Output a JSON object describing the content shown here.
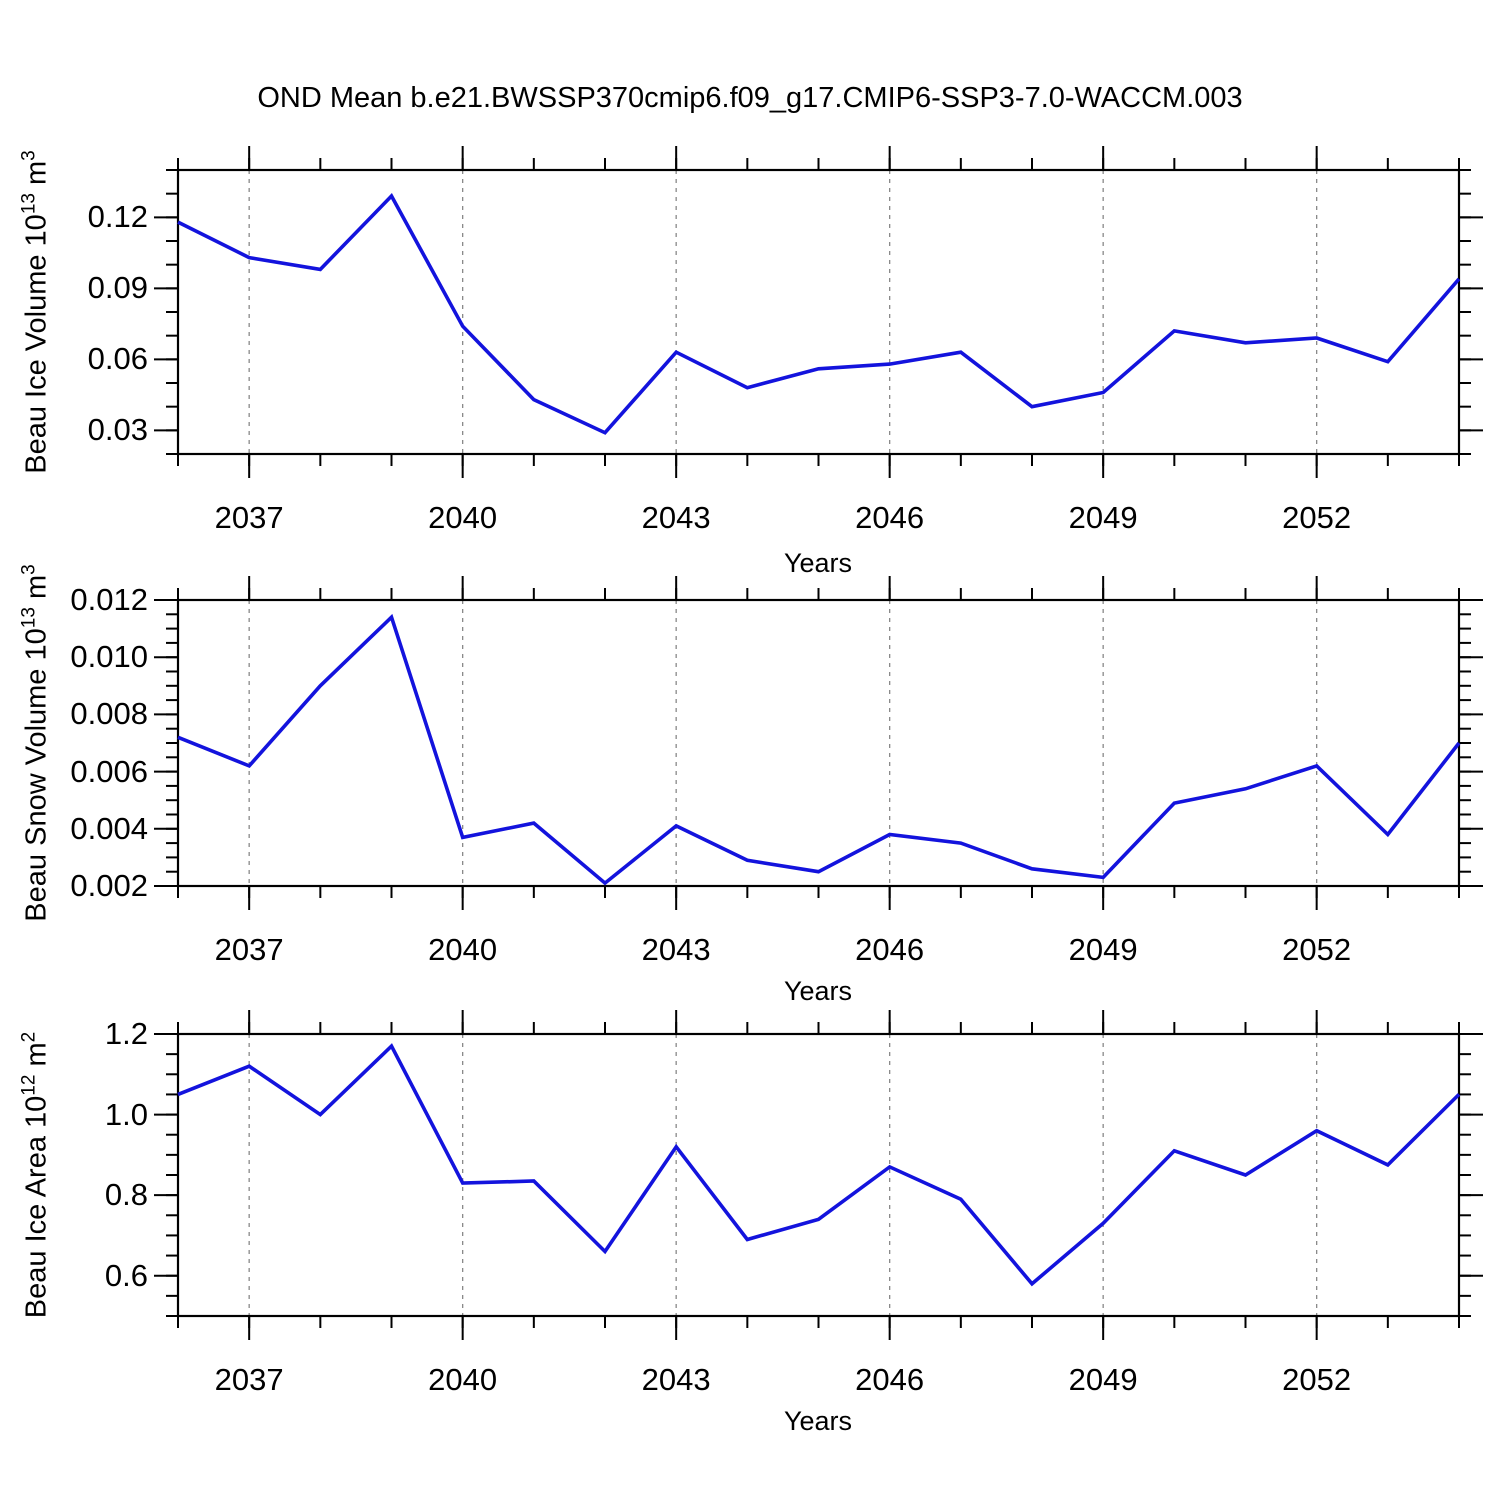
{
  "title": "OND Mean b.e21.BWSSP370cmip6.f09_g17.CMIP6-SSP3-7.0-WACCM.003",
  "line_color": "#1313dd",
  "gridline_color": "#888888",
  "axis_color": "#000000",
  "chart_data": [
    {
      "type": "line",
      "ylabel": {
        "pre": "Beau Ice Volume 10",
        "sup1": "13",
        "mid": " m",
        "sup2": "3"
      },
      "xlabel": "Years",
      "x": [
        2036,
        2037,
        2038,
        2039,
        2040,
        2041,
        2042,
        2043,
        2044,
        2045,
        2046,
        2047,
        2048,
        2049,
        2050,
        2051,
        2052,
        2053,
        2054
      ],
      "values": [
        0.118,
        0.103,
        0.098,
        0.129,
        0.074,
        0.043,
        0.029,
        0.063,
        0.048,
        0.056,
        0.058,
        0.063,
        0.04,
        0.046,
        0.072,
        0.067,
        0.069,
        0.059,
        0.094
      ],
      "xlim": [
        2036,
        2054
      ],
      "ylim": [
        0.02,
        0.14
      ],
      "yticks": [
        {
          "value": 0.03,
          "label": "0.03"
        },
        {
          "value": 0.06,
          "label": "0.06"
        },
        {
          "value": 0.09,
          "label": "0.09"
        },
        {
          "value": 0.12,
          "label": "0.12"
        }
      ],
      "ytick_minor_step": 0.01,
      "xticks_major": [
        {
          "value": 2037,
          "label": "2037"
        },
        {
          "value": 2040,
          "label": "2040"
        },
        {
          "value": 2043,
          "label": "2043"
        },
        {
          "value": 2046,
          "label": "2046"
        },
        {
          "value": 2049,
          "label": "2049"
        },
        {
          "value": 2052,
          "label": "2052"
        }
      ],
      "xtick_minor_step": 1,
      "grid": "dashed-vertical-at-major-xticks"
    },
    {
      "type": "line",
      "ylabel": {
        "pre": "Beau Snow Volume 10",
        "sup1": "13",
        "mid": " m",
        "sup2": "3"
      },
      "xlabel": "Years",
      "x": [
        2036,
        2037,
        2038,
        2039,
        2040,
        2041,
        2042,
        2043,
        2044,
        2045,
        2046,
        2047,
        2048,
        2049,
        2050,
        2051,
        2052,
        2053,
        2054
      ],
      "values": [
        0.0072,
        0.0062,
        0.009,
        0.0114,
        0.0037,
        0.0042,
        0.0021,
        0.0041,
        0.0029,
        0.0025,
        0.0038,
        0.0035,
        0.0026,
        0.0023,
        0.0049,
        0.0054,
        0.0062,
        0.0038,
        0.007
      ],
      "xlim": [
        2036,
        2054
      ],
      "ylim": [
        0.002,
        0.012
      ],
      "yticks": [
        {
          "value": 0.002,
          "label": "0.002"
        },
        {
          "value": 0.004,
          "label": "0.004"
        },
        {
          "value": 0.006,
          "label": "0.006"
        },
        {
          "value": 0.008,
          "label": "0.008"
        },
        {
          "value": 0.01,
          "label": "0.010"
        },
        {
          "value": 0.012,
          "label": "0.012"
        }
      ],
      "ytick_minor_step": 0.0005,
      "xticks_major": [
        {
          "value": 2037,
          "label": "2037"
        },
        {
          "value": 2040,
          "label": "2040"
        },
        {
          "value": 2043,
          "label": "2043"
        },
        {
          "value": 2046,
          "label": "2046"
        },
        {
          "value": 2049,
          "label": "2049"
        },
        {
          "value": 2052,
          "label": "2052"
        }
      ],
      "xtick_minor_step": 1,
      "grid": "dashed-vertical-at-major-xticks"
    },
    {
      "type": "line",
      "ylabel": {
        "pre": "Beau Ice Area 10",
        "sup1": "12",
        "mid": " m",
        "sup2": "2"
      },
      "xlabel": "Years",
      "x": [
        2036,
        2037,
        2038,
        2039,
        2040,
        2041,
        2042,
        2043,
        2044,
        2045,
        2046,
        2047,
        2048,
        2049,
        2050,
        2051,
        2052,
        2053,
        2054
      ],
      "values": [
        1.05,
        1.12,
        1.0,
        1.17,
        0.83,
        0.835,
        0.66,
        0.92,
        0.69,
        0.74,
        0.87,
        0.79,
        0.58,
        0.73,
        0.91,
        0.85,
        0.96,
        0.875,
        1.05
      ],
      "xlim": [
        2036,
        2054
      ],
      "ylim": [
        0.5,
        1.2
      ],
      "yticks": [
        {
          "value": 0.6,
          "label": "0.6"
        },
        {
          "value": 0.8,
          "label": "0.8"
        },
        {
          "value": 1.0,
          "label": "1.0"
        },
        {
          "value": 1.2,
          "label": "1.2"
        }
      ],
      "ytick_minor_step": 0.05,
      "xticks_major": [
        {
          "value": 2037,
          "label": "2037"
        },
        {
          "value": 2040,
          "label": "2040"
        },
        {
          "value": 2043,
          "label": "2043"
        },
        {
          "value": 2046,
          "label": "2046"
        },
        {
          "value": 2049,
          "label": "2049"
        },
        {
          "value": 2052,
          "label": "2052"
        }
      ],
      "xtick_minor_step": 1,
      "grid": "dashed-vertical-at-major-xticks"
    }
  ]
}
